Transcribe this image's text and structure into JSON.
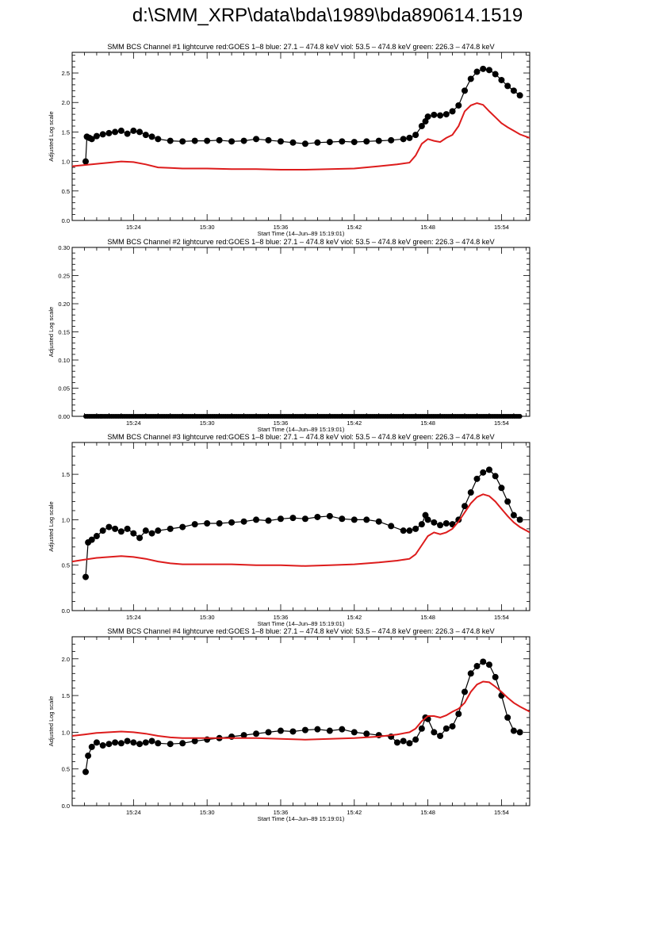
{
  "page": {
    "title": "d:\\SMM_XRP\\data\\bda\\1989\\bda890614.1519"
  },
  "chart_data": [
    {
      "type": "line",
      "title": "SMM BCS Channel #1 lightcurve  red:GOES 1–8  blue: 27.1 – 474.8 keV  viol: 53.5 – 474.8 keV  green: 226.3 – 474.8 keV",
      "xlabel": "Start Time (14–Jun–89 15:19:01)",
      "ylabel": "Adjusted Log scale",
      "xlim": [
        19.0,
        56.3
      ],
      "ylim": [
        0,
        2.85
      ],
      "xticks": [
        "15:24",
        "15:30",
        "15:36",
        "15:42",
        "15:48",
        "15:54"
      ],
      "xtick_values": [
        24,
        30,
        36,
        42,
        48,
        54
      ],
      "yticks": [
        "0.0",
        "0.5",
        "1.0",
        "1.5",
        "2.0",
        "2.5"
      ],
      "ytick_values": [
        0,
        0.5,
        1.0,
        1.5,
        2.0,
        2.5
      ],
      "series": [
        {
          "color": "#000000",
          "style": "line+dots",
          "x": [
            20.1,
            20.2,
            20.4,
            20.6,
            21.0,
            21.5,
            22.0,
            22.5,
            23.0,
            23.5,
            24.0,
            24.5,
            25.0,
            25.5,
            26.0,
            27.0,
            28.0,
            29.0,
            30.0,
            31.0,
            32.0,
            33.0,
            34.0,
            35.0,
            36.0,
            37.0,
            38.0,
            39.0,
            40.0,
            41.0,
            42.0,
            43.0,
            44.0,
            45.0,
            46.0,
            46.5,
            47.0,
            47.5,
            47.8,
            48.0,
            48.5,
            49.0,
            49.5,
            50.0,
            50.5,
            51.0,
            51.5,
            52.0,
            52.5,
            53.0,
            53.5,
            54.0,
            54.5,
            55.0,
            55.5
          ],
          "y": [
            1.0,
            1.42,
            1.4,
            1.38,
            1.43,
            1.46,
            1.48,
            1.5,
            1.52,
            1.47,
            1.52,
            1.5,
            1.45,
            1.42,
            1.38,
            1.35,
            1.34,
            1.35,
            1.35,
            1.36,
            1.34,
            1.35,
            1.38,
            1.36,
            1.34,
            1.32,
            1.3,
            1.32,
            1.33,
            1.34,
            1.33,
            1.34,
            1.35,
            1.36,
            1.38,
            1.4,
            1.45,
            1.6,
            1.68,
            1.76,
            1.79,
            1.78,
            1.8,
            1.85,
            1.95,
            2.2,
            2.4,
            2.52,
            2.57,
            2.55,
            2.48,
            2.38,
            2.28,
            2.2,
            2.12
          ]
        },
        {
          "color": "#dd1c1c",
          "style": "line",
          "x": [
            19.0,
            20.0,
            21.0,
            22.0,
            23.0,
            24.0,
            25.0,
            26.0,
            27.0,
            28.0,
            30.0,
            32.0,
            34.0,
            36.0,
            38.0,
            40.0,
            42.0,
            44.0,
            45.5,
            46.5,
            47.0,
            47.5,
            48.0,
            48.5,
            49.0,
            49.5,
            50.0,
            50.5,
            51.0,
            51.5,
            52.0,
            52.5,
            53.0,
            53.5,
            54.0,
            54.5,
            55.0,
            55.5,
            56.3
          ],
          "y": [
            0.92,
            0.94,
            0.96,
            0.98,
            1.0,
            0.99,
            0.95,
            0.9,
            0.89,
            0.88,
            0.88,
            0.87,
            0.87,
            0.86,
            0.86,
            0.87,
            0.88,
            0.92,
            0.95,
            0.98,
            1.1,
            1.3,
            1.38,
            1.35,
            1.33,
            1.4,
            1.45,
            1.6,
            1.85,
            1.95,
            1.99,
            1.96,
            1.85,
            1.75,
            1.65,
            1.58,
            1.52,
            1.46,
            1.4
          ]
        }
      ]
    },
    {
      "type": "line",
      "title": "SMM BCS Channel #2 lightcurve  red:GOES 1–8  blue: 27.1 – 474.8 keV  viol: 53.5 – 474.8 keV  green: 226.3 – 474.8 keV",
      "xlabel": "Start Time (14–Jun–89 15:19:01)",
      "ylabel": "Adjusted Log scale",
      "xlim": [
        19.0,
        56.3
      ],
      "ylim": [
        0,
        0.3
      ],
      "xticks": [
        "15:24",
        "15:30",
        "15:36",
        "15:42",
        "15:48",
        "15:54"
      ],
      "xtick_values": [
        24,
        30,
        36,
        42,
        48,
        54
      ],
      "yticks": [
        "0.00",
        "0.05",
        "0.10",
        "0.15",
        "0.20",
        "0.25",
        "0.30"
      ],
      "ytick_values": [
        0,
        0.05,
        0.1,
        0.15,
        0.2,
        0.25,
        0.3
      ],
      "series": [
        {
          "color": "#000000",
          "style": "line+dots",
          "x": [
            20.1,
            55.5
          ],
          "y": [
            0.0,
            0.0
          ]
        }
      ]
    },
    {
      "type": "line",
      "title": "SMM BCS Channel #3 lightcurve  red:GOES 1–8  blue: 27.1 – 474.8 keV  viol: 53.5 – 474.8 keV  green: 226.3 – 474.8 keV",
      "xlabel": "Start Time (14–Jun–89 15:19:01)",
      "ylabel": "Adjusted Log scale",
      "xlim": [
        19.0,
        56.3
      ],
      "ylim": [
        0,
        1.85
      ],
      "xticks": [
        "15:24",
        "15:30",
        "15:36",
        "15:42",
        "15:48",
        "15:54"
      ],
      "xtick_values": [
        24,
        30,
        36,
        42,
        48,
        54
      ],
      "yticks": [
        "0.0",
        "0.5",
        "1.0",
        "1.5"
      ],
      "ytick_values": [
        0,
        0.5,
        1.0,
        1.5
      ],
      "series": [
        {
          "color": "#000000",
          "style": "line+dots",
          "x": [
            20.1,
            20.3,
            20.6,
            21.0,
            21.5,
            22.0,
            22.5,
            23.0,
            23.5,
            24.0,
            24.5,
            25.0,
            25.5,
            26.0,
            27.0,
            28.0,
            29.0,
            30.0,
            31.0,
            32.0,
            33.0,
            34.0,
            35.0,
            36.0,
            37.0,
            38.0,
            39.0,
            40.0,
            41.0,
            42.0,
            43.0,
            44.0,
            45.0,
            46.0,
            46.5,
            47.0,
            47.5,
            47.8,
            48.0,
            48.5,
            49.0,
            49.5,
            50.0,
            50.5,
            51.0,
            51.5,
            52.0,
            52.5,
            53.0,
            53.5,
            54.0,
            54.5,
            55.0,
            55.5
          ],
          "y": [
            0.37,
            0.75,
            0.78,
            0.82,
            0.88,
            0.92,
            0.9,
            0.87,
            0.9,
            0.85,
            0.8,
            0.88,
            0.85,
            0.88,
            0.9,
            0.92,
            0.95,
            0.96,
            0.96,
            0.97,
            0.98,
            1.0,
            0.99,
            1.01,
            1.02,
            1.01,
            1.03,
            1.04,
            1.01,
            1.0,
            1.0,
            0.98,
            0.93,
            0.88,
            0.88,
            0.9,
            0.95,
            1.05,
            1.0,
            0.97,
            0.94,
            0.96,
            0.95,
            1.0,
            1.15,
            1.3,
            1.45,
            1.52,
            1.55,
            1.48,
            1.35,
            1.2,
            1.05,
            1.0
          ]
        },
        {
          "color": "#dd1c1c",
          "style": "line",
          "x": [
            19.0,
            20.0,
            21.0,
            22.0,
            23.0,
            24.0,
            25.0,
            26.0,
            27.0,
            28.0,
            30.0,
            32.0,
            34.0,
            36.0,
            38.0,
            40.0,
            42.0,
            44.0,
            45.5,
            46.5,
            47.0,
            47.5,
            48.0,
            48.5,
            49.0,
            49.5,
            50.0,
            50.5,
            51.0,
            51.5,
            52.0,
            52.5,
            53.0,
            53.5,
            54.0,
            54.5,
            55.0,
            55.5,
            56.3
          ],
          "y": [
            0.54,
            0.56,
            0.58,
            0.59,
            0.6,
            0.59,
            0.57,
            0.54,
            0.52,
            0.51,
            0.51,
            0.51,
            0.5,
            0.5,
            0.49,
            0.5,
            0.51,
            0.53,
            0.55,
            0.57,
            0.62,
            0.72,
            0.82,
            0.86,
            0.84,
            0.86,
            0.9,
            0.98,
            1.08,
            1.18,
            1.25,
            1.28,
            1.26,
            1.2,
            1.12,
            1.04,
            0.97,
            0.92,
            0.86
          ]
        }
      ]
    },
    {
      "type": "line",
      "title": "SMM BCS Channel #4 lightcurve  red:GOES 1–8  blue: 27.1 – 474.8 keV  viol: 53.5 – 474.8 keV  green: 226.3 – 474.8 keV",
      "xlabel": "Start Time (14–Jun–89 15:19:01)",
      "ylabel": "Adjusted Log scale",
      "xlim": [
        19.0,
        56.3
      ],
      "ylim": [
        0,
        2.3
      ],
      "xticks": [
        "15:24",
        "15:30",
        "15:36",
        "15:42",
        "15:48",
        "15:54"
      ],
      "xtick_values": [
        24,
        30,
        36,
        42,
        48,
        54
      ],
      "yticks": [
        "0.0",
        "0.5",
        "1.0",
        "1.5",
        "2.0"
      ],
      "ytick_values": [
        0,
        0.5,
        1.0,
        1.5,
        2.0
      ],
      "series": [
        {
          "color": "#000000",
          "style": "line+dots",
          "x": [
            20.1,
            20.3,
            20.6,
            21.0,
            21.5,
            22.0,
            22.5,
            23.0,
            23.5,
            24.0,
            24.5,
            25.0,
            25.5,
            26.0,
            27.0,
            28.0,
            29.0,
            30.0,
            31.0,
            32.0,
            33.0,
            34.0,
            35.0,
            36.0,
            37.0,
            38.0,
            39.0,
            40.0,
            41.0,
            42.0,
            43.0,
            44.0,
            45.0,
            45.5,
            46.0,
            46.5,
            47.0,
            47.5,
            47.8,
            48.0,
            48.5,
            49.0,
            49.5,
            50.0,
            50.5,
            51.0,
            51.5,
            52.0,
            52.5,
            53.0,
            53.5,
            54.0,
            54.5,
            55.0,
            55.5
          ],
          "y": [
            0.46,
            0.68,
            0.8,
            0.86,
            0.82,
            0.84,
            0.86,
            0.85,
            0.88,
            0.86,
            0.84,
            0.86,
            0.88,
            0.85,
            0.84,
            0.85,
            0.88,
            0.9,
            0.92,
            0.94,
            0.96,
            0.98,
            1.0,
            1.02,
            1.01,
            1.03,
            1.04,
            1.02,
            1.04,
            1.0,
            0.98,
            0.96,
            0.94,
            0.86,
            0.88,
            0.85,
            0.9,
            1.05,
            1.2,
            1.18,
            1.0,
            0.95,
            1.05,
            1.08,
            1.25,
            1.55,
            1.8,
            1.9,
            1.96,
            1.92,
            1.75,
            1.5,
            1.2,
            1.02,
            1.0
          ]
        },
        {
          "color": "#dd1c1c",
          "style": "line",
          "x": [
            19.0,
            20.0,
            21.0,
            22.0,
            23.0,
            24.0,
            25.0,
            26.0,
            27.0,
            28.0,
            30.0,
            32.0,
            34.0,
            36.0,
            38.0,
            40.0,
            42.0,
            44.0,
            45.5,
            46.5,
            47.0,
            47.5,
            48.0,
            48.5,
            49.0,
            49.5,
            50.0,
            50.5,
            51.0,
            51.5,
            52.0,
            52.5,
            53.0,
            53.5,
            54.0,
            54.5,
            55.0,
            55.5,
            56.3
          ],
          "y": [
            0.95,
            0.97,
            0.99,
            1.0,
            1.01,
            1.0,
            0.98,
            0.95,
            0.93,
            0.92,
            0.92,
            0.92,
            0.92,
            0.91,
            0.9,
            0.91,
            0.92,
            0.94,
            0.97,
            1.0,
            1.05,
            1.15,
            1.22,
            1.22,
            1.2,
            1.23,
            1.28,
            1.32,
            1.4,
            1.55,
            1.65,
            1.69,
            1.68,
            1.62,
            1.55,
            1.47,
            1.4,
            1.35,
            1.28
          ]
        }
      ]
    }
  ]
}
